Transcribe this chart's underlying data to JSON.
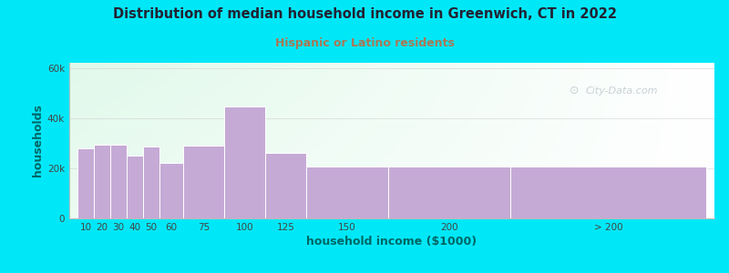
{
  "title": "Distribution of median household income in Greenwich, CT in 2022",
  "subtitle": "Hispanic or Latino residents",
  "xlabel": "household income ($1000)",
  "ylabel": "households",
  "bar_labels": [
    "10",
    "20",
    "30",
    "40",
    "50",
    "60",
    "75",
    "100",
    "125",
    "150",
    "200",
    "> 200"
  ],
  "bar_values": [
    28000,
    29500,
    29500,
    25000,
    28500,
    22000,
    29000,
    44500,
    26000,
    20500,
    20500,
    20500
  ],
  "bar_color": "#c5aad5",
  "bar_edge_color": "#ffffff",
  "background_outer": "#00e8f8",
  "background_plot_topleft": "#d8f0d8",
  "background_plot_bottomright": "#f8f8f8",
  "title_color": "#222233",
  "subtitle_color": "#aa7755",
  "axis_label_color": "#006666",
  "tick_color": "#444444",
  "ylim": [
    0,
    62000
  ],
  "yticks": [
    0,
    20000,
    40000,
    60000
  ],
  "ytick_labels": [
    "0",
    "20k",
    "40k",
    "60k"
  ],
  "watermark": "City-Data.com",
  "bar_widths": [
    10,
    10,
    10,
    10,
    10,
    15,
    25,
    25,
    25,
    50,
    75,
    120
  ],
  "bar_lefts": [
    5,
    15,
    25,
    35,
    45,
    55,
    70,
    95,
    120,
    145,
    195,
    270
  ]
}
